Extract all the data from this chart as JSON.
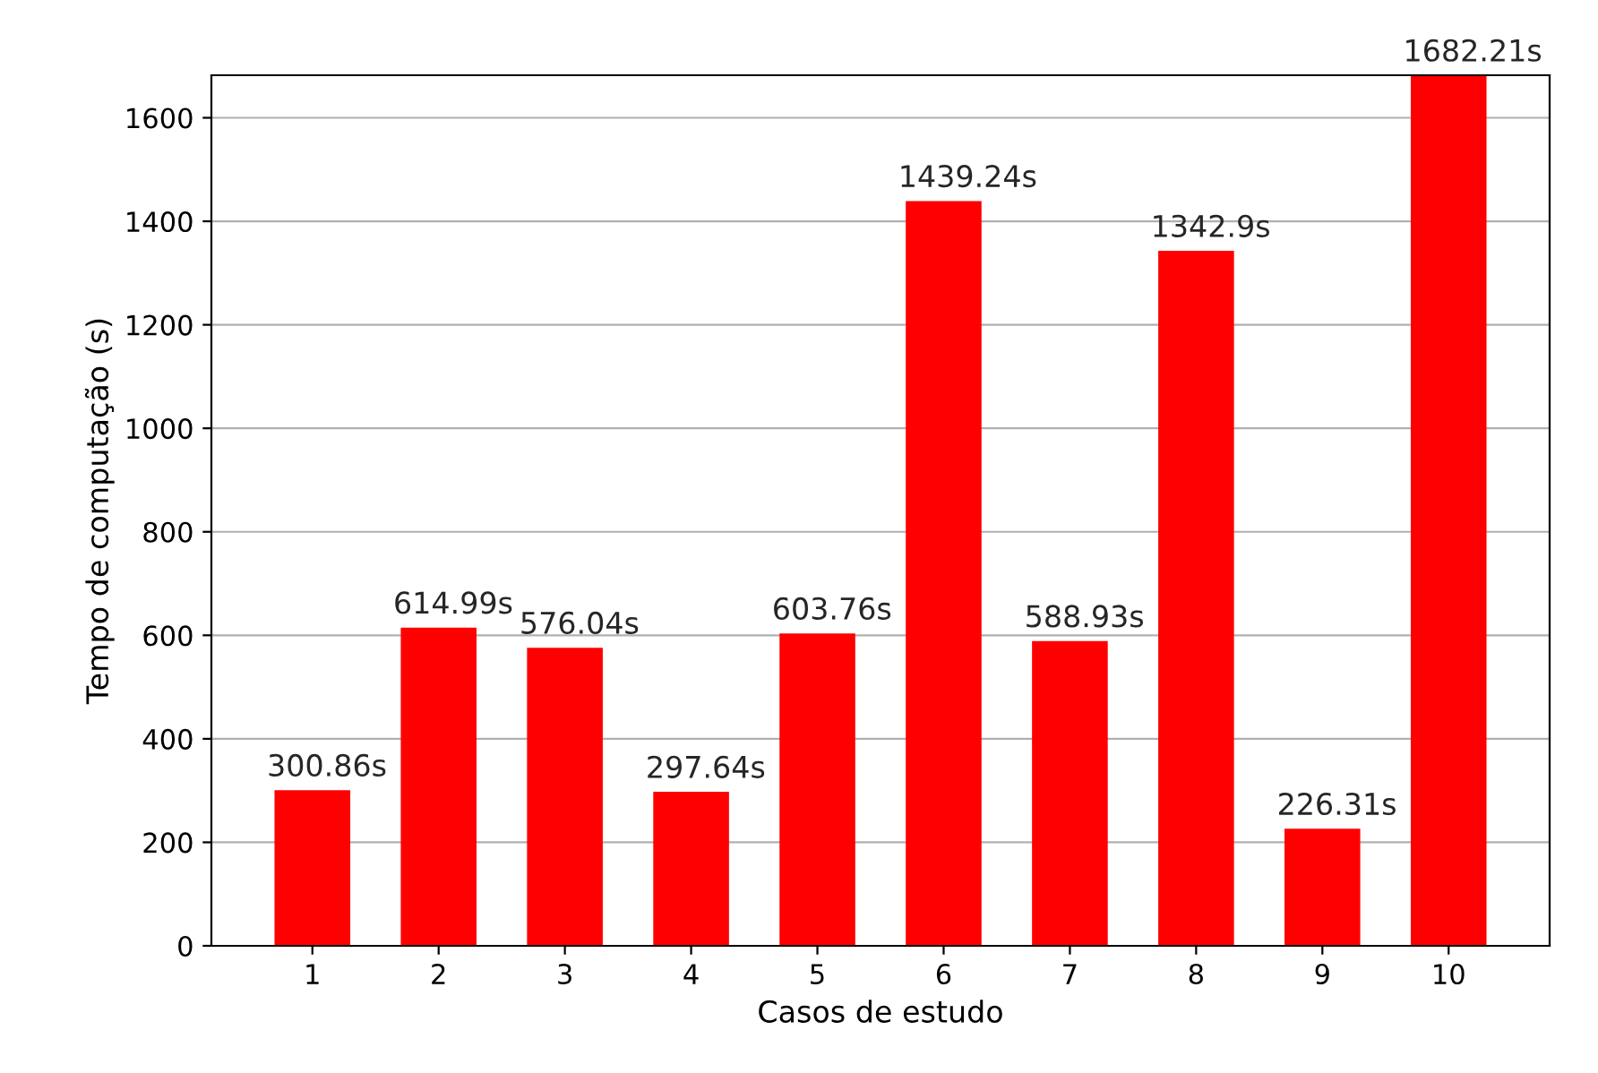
{
  "chart_data": {
    "type": "bar",
    "xlabel": "Casos de estudo",
    "ylabel": "Tempo de computação (s)",
    "categories": [
      "1",
      "2",
      "3",
      "4",
      "5",
      "6",
      "7",
      "8",
      "9",
      "10"
    ],
    "values": [
      300.86,
      614.99,
      576.04,
      297.64,
      603.76,
      1439.24,
      588.93,
      1342.9,
      226.31,
      1682.21
    ],
    "value_labels": [
      "300.86s",
      "614.99s",
      "576.04s",
      "297.64s",
      "603.76s",
      "1439.24s",
      "588.93s",
      "1342.9s",
      "226.31s",
      "1682.21s"
    ],
    "color": "#ff0000",
    "ylim": [
      0,
      1682.21
    ],
    "yticks": [
      0,
      200,
      400,
      600,
      800,
      1000,
      1200,
      1400,
      1600
    ],
    "grid": "y"
  }
}
